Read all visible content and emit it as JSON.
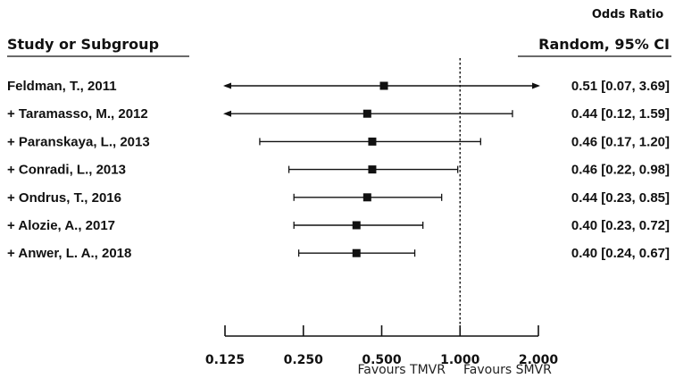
{
  "chart_data": {
    "type": "forest",
    "header": {
      "study_label": "Study or Subgroup",
      "effect_label": "Odds Ratio",
      "effect_method": "Random, 95% CI"
    },
    "scale": "log",
    "xlim": [
      0.125,
      2.0
    ],
    "x_ticks": [
      0.125,
      0.25,
      0.5,
      1.0,
      2.0
    ],
    "x_tick_labels": [
      "0.125",
      "0.250",
      "0.500",
      "1.000",
      "2.000"
    ],
    "reference_line": 1.0,
    "favours_left": "Favours TMVR",
    "favours_right": "Favours SMVR",
    "studies": [
      {
        "label": "Feldman, T., 2011",
        "or": 0.51,
        "lower": 0.07,
        "upper": 3.69,
        "ci_text": "0.51 [0.07, 3.69]"
      },
      {
        "label": "+ Taramasso, M., 2012",
        "or": 0.44,
        "lower": 0.12,
        "upper": 1.59,
        "ci_text": "0.44 [0.12, 1.59]"
      },
      {
        "label": "+ Paranskaya, L., 2013",
        "or": 0.46,
        "lower": 0.17,
        "upper": 1.2,
        "ci_text": "0.46 [0.17, 1.20]"
      },
      {
        "label": "+ Conradi, L., 2013",
        "or": 0.46,
        "lower": 0.22,
        "upper": 0.98,
        "ci_text": "0.46 [0.22, 0.98]"
      },
      {
        "label": "+ Ondrus, T., 2016",
        "or": 0.44,
        "lower": 0.23,
        "upper": 0.85,
        "ci_text": "0.44 [0.23, 0.85]"
      },
      {
        "label": "+ Alozie, A., 2017",
        "or": 0.4,
        "lower": 0.23,
        "upper": 0.72,
        "ci_text": "0.40 [0.23, 0.72]"
      },
      {
        "label": "+ Anwer, L. A., 2018",
        "or": 0.4,
        "lower": 0.24,
        "upper": 0.67,
        "ci_text": "0.40 [0.24, 0.67]"
      }
    ]
  }
}
